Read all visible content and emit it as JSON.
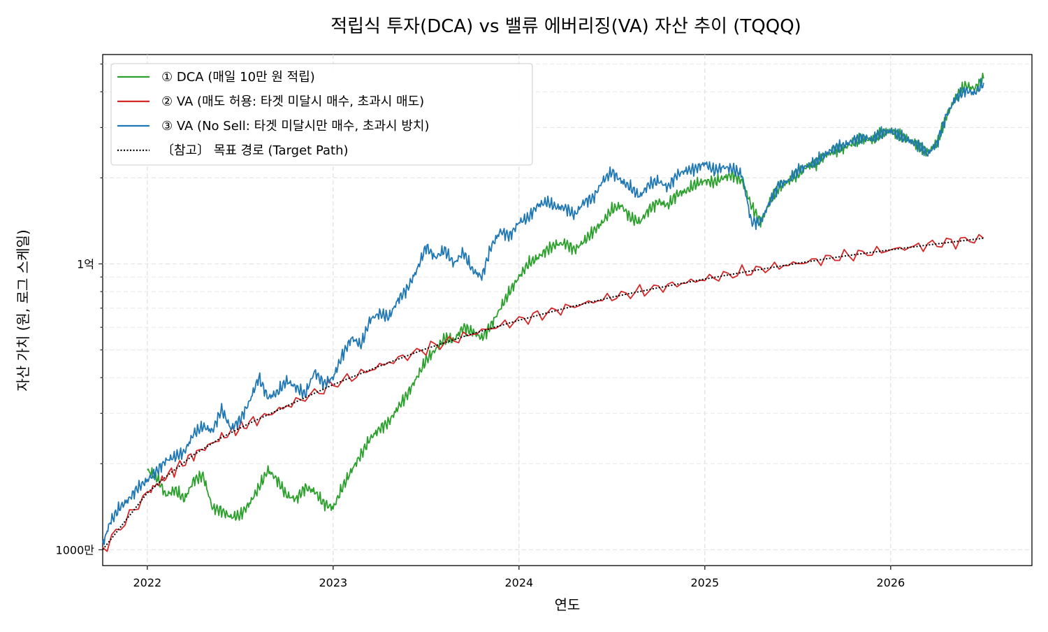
{
  "chart_data": {
    "type": "line",
    "title": "적립식 투자(DCA) vs 밸류 에버리징(VA) 자산 추이 (TQQQ)",
    "xlabel": "연도",
    "ylabel": "자산 가치 (원, 로그 스케일)",
    "yscale": "log",
    "xlim": [
      2021.76,
      2026.76
    ],
    "ylim": [
      8800000,
      540000000
    ],
    "x_ticks": [
      {
        "value": 2022,
        "label": "2022"
      },
      {
        "value": 2023,
        "label": "2023"
      },
      {
        "value": 2024,
        "label": "2024"
      },
      {
        "value": 2025,
        "label": "2025"
      },
      {
        "value": 2026,
        "label": "2026"
      }
    ],
    "y_ticks": [
      {
        "value": 10000000,
        "label": "1000만"
      },
      {
        "value": 100000000,
        "label": "1억"
      }
    ],
    "grid": true,
    "legend_position": "top-left",
    "series": [
      {
        "name": "① DCA (매일 10만 원 적립)",
        "color": "#2ca02c",
        "style": "solid",
        "x": [
          2022.0,
          2022.05,
          2022.1,
          2022.15,
          2022.2,
          2022.25,
          2022.3,
          2022.35,
          2022.4,
          2022.45,
          2022.5,
          2022.55,
          2022.6,
          2022.65,
          2022.7,
          2022.75,
          2022.8,
          2022.85,
          2022.9,
          2022.95,
          2023.0,
          2023.05,
          2023.1,
          2023.15,
          2023.2,
          2023.25,
          2023.3,
          2023.35,
          2023.4,
          2023.45,
          2023.5,
          2023.55,
          2023.6,
          2023.65,
          2023.7,
          2023.75,
          2023.8,
          2023.85,
          2023.9,
          2023.95,
          2024.0,
          2024.05,
          2024.1,
          2024.15,
          2024.2,
          2024.25,
          2024.3,
          2024.35,
          2024.4,
          2024.45,
          2024.5,
          2024.55,
          2024.6,
          2024.65,
          2024.7,
          2024.75,
          2024.8,
          2024.85,
          2024.9,
          2024.95,
          2025.0,
          2025.05,
          2025.1,
          2025.15,
          2025.2,
          2025.25,
          2025.3,
          2025.35,
          2025.4,
          2025.45,
          2025.5,
          2025.55,
          2025.6,
          2025.65,
          2025.7,
          2025.75,
          2025.8,
          2025.85,
          2025.9,
          2025.95,
          2026.0,
          2026.05,
          2026.1,
          2026.15,
          2026.2,
          2026.25,
          2026.3,
          2026.35,
          2026.4,
          2026.45,
          2026.5
        ],
        "y": [
          19000000,
          18000000,
          15500000,
          16200000,
          15000000,
          17500000,
          18200000,
          14000000,
          13700000,
          13000000,
          13200000,
          14500000,
          16500000,
          19000000,
          17500000,
          15500000,
          15000000,
          16500000,
          16000000,
          14500000,
          14000000,
          16500000,
          19000000,
          21500000,
          24500000,
          26500000,
          28000000,
          31500000,
          35000000,
          40000000,
          46000000,
          50000000,
          55000000,
          54000000,
          60000000,
          58000000,
          55000000,
          61000000,
          70000000,
          80000000,
          90000000,
          100000000,
          105000000,
          112000000,
          117000000,
          118000000,
          112000000,
          120000000,
          130000000,
          140000000,
          155000000,
          160000000,
          145000000,
          140000000,
          155000000,
          165000000,
          160000000,
          175000000,
          180000000,
          190000000,
          195000000,
          193000000,
          200000000,
          205000000,
          195000000,
          160000000,
          140000000,
          165000000,
          185000000,
          195000000,
          205000000,
          220000000,
          225000000,
          240000000,
          250000000,
          255000000,
          265000000,
          275000000,
          270000000,
          285000000,
          292000000,
          282000000,
          270000000,
          260000000,
          245000000,
          265000000,
          330000000,
          380000000,
          420000000,
          410000000,
          445000000
        ]
      },
      {
        "name": "② VA (매도 허용: 타겟 미달시 매수, 초과시 매도)",
        "color": "#d62728",
        "style": "solid",
        "x": [
          2021.76,
          2022.0,
          2022.1,
          2022.25,
          2022.4,
          2022.55,
          2022.75,
          2023.0,
          2023.25,
          2023.5,
          2023.75,
          2024.0,
          2024.25,
          2024.5,
          2024.75,
          2025.0,
          2025.25,
          2025.5,
          2025.75,
          2026.0,
          2026.25,
          2026.5
        ],
        "y": [
          10000000,
          15800000,
          18000000,
          21500000,
          24700000,
          27700000,
          31800000,
          37800000,
          43900000,
          50500000,
          57000000,
          63500000,
          70000000,
          76500000,
          82500000,
          88500000,
          94500000,
          100500000,
          106500000,
          112000000,
          117500000,
          123000000
        ]
      },
      {
        "name": "③ VA (No Sell: 타겟 미달시만 매수, 초과시 방치)",
        "color": "#1f77b4",
        "style": "solid",
        "x": [
          2021.76,
          2021.8,
          2021.85,
          2021.9,
          2021.95,
          2022.0,
          2022.05,
          2022.1,
          2022.15,
          2022.2,
          2022.25,
          2022.3,
          2022.35,
          2022.4,
          2022.45,
          2022.5,
          2022.55,
          2022.6,
          2022.65,
          2022.7,
          2022.75,
          2022.8,
          2022.85,
          2022.9,
          2022.95,
          2023.0,
          2023.05,
          2023.1,
          2023.15,
          2023.2,
          2023.25,
          2023.3,
          2023.35,
          2023.4,
          2023.45,
          2023.5,
          2023.55,
          2023.6,
          2023.65,
          2023.7,
          2023.75,
          2023.8,
          2023.85,
          2023.9,
          2023.95,
          2024.0,
          2024.05,
          2024.1,
          2024.15,
          2024.2,
          2024.25,
          2024.3,
          2024.35,
          2024.4,
          2024.45,
          2024.5,
          2024.55,
          2024.6,
          2024.65,
          2024.7,
          2024.75,
          2024.8,
          2024.85,
          2024.9,
          2024.95,
          2025.0,
          2025.05,
          2025.1,
          2025.15,
          2025.2,
          2025.25,
          2025.3,
          2025.35,
          2025.4,
          2025.45,
          2025.5,
          2025.55,
          2025.6,
          2025.65,
          2025.7,
          2025.75,
          2025.8,
          2025.85,
          2025.9,
          2025.95,
          2026.0,
          2026.05,
          2026.1,
          2026.15,
          2026.2,
          2026.25,
          2026.3,
          2026.35,
          2026.4,
          2026.45,
          2026.5
        ],
        "y": [
          10400000,
          12500000,
          14000000,
          15000000,
          16500000,
          17500000,
          18800000,
          20500000,
          21200000,
          22000000,
          25500000,
          27000000,
          26000000,
          31000000,
          26500000,
          28500000,
          33000000,
          40000000,
          34000000,
          35500000,
          39000000,
          37000000,
          35000000,
          42000000,
          38000000,
          40000000,
          48000000,
          55000000,
          52000000,
          64000000,
          67000000,
          65000000,
          75000000,
          82000000,
          95000000,
          115000000,
          105000000,
          112000000,
          100000000,
          110000000,
          95000000,
          90000000,
          115000000,
          130000000,
          125000000,
          140000000,
          145000000,
          160000000,
          165000000,
          158000000,
          157000000,
          148000000,
          165000000,
          170000000,
          195000000,
          210000000,
          195000000,
          185000000,
          172000000,
          190000000,
          195000000,
          185000000,
          205000000,
          212000000,
          215000000,
          225000000,
          212000000,
          218000000,
          215000000,
          205000000,
          140000000,
          140000000,
          165000000,
          190000000,
          195000000,
          212000000,
          220000000,
          228000000,
          242000000,
          255000000,
          260000000,
          270000000,
          278000000,
          272000000,
          288000000,
          292000000,
          280000000,
          270000000,
          260000000,
          242000000,
          265000000,
          330000000,
          380000000,
          405000000,
          395000000,
          430000000
        ]
      },
      {
        "name": "〔참고〕 목표 경로 (Target Path)",
        "color": "#000000",
        "style": "dotted",
        "x": [
          2021.76,
          2022.0,
          2022.1,
          2022.25,
          2022.4,
          2022.55,
          2022.75,
          2023.0,
          2023.25,
          2023.5,
          2023.75,
          2024.0,
          2024.25,
          2024.5,
          2024.75,
          2025.0,
          2025.25,
          2025.5,
          2025.75,
          2026.0,
          2026.25,
          2026.5
        ],
        "y": [
          10000000,
          15800000,
          18000000,
          21500000,
          24700000,
          27700000,
          31800000,
          37800000,
          43900000,
          50500000,
          57000000,
          63500000,
          70000000,
          76500000,
          82500000,
          88500000,
          94500000,
          100500000,
          106500000,
          112000000,
          117500000,
          123000000
        ]
      }
    ]
  }
}
